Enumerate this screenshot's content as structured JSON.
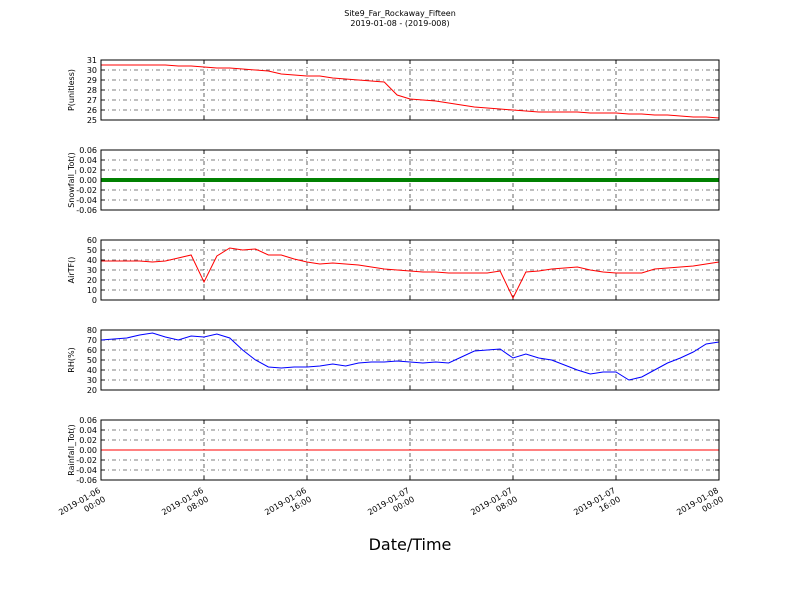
{
  "title": "Site9_Far_Rockaway_Fifteen",
  "subtitle": "2019-01-08 - (2019-008)",
  "xlabel": "Date/Time",
  "chart_data": [
    {
      "type": "line",
      "ylabel": "P(unitless)",
      "color": "#ff0000",
      "grid": true,
      "xlim": [
        "2019-01-06 00:00",
        "2019-01-08 00:00"
      ],
      "xticks": [
        "2019-01-06 00:00",
        "2019-01-06 08:00",
        "2019-01-06 16:00",
        "2019-01-07 00:00",
        "2019-01-07 08:00",
        "2019-01-07 16:00",
        "2019-01-08 00:00"
      ],
      "ylim": [
        25,
        31
      ],
      "yticks": [
        25,
        26,
        27,
        28,
        29,
        30,
        31
      ],
      "x": [
        "2019-01-06 00:00",
        "2019-01-06 01:00",
        "2019-01-06 02:00",
        "2019-01-06 03:00",
        "2019-01-06 04:00",
        "2019-01-06 05:00",
        "2019-01-06 06:00",
        "2019-01-06 07:00",
        "2019-01-06 08:00",
        "2019-01-06 09:00",
        "2019-01-06 10:00",
        "2019-01-06 11:00",
        "2019-01-06 12:00",
        "2019-01-06 13:00",
        "2019-01-06 14:00",
        "2019-01-06 15:00",
        "2019-01-06 16:00",
        "2019-01-06 17:00",
        "2019-01-06 18:00",
        "2019-01-06 19:00",
        "2019-01-06 20:00",
        "2019-01-06 21:00",
        "2019-01-06 22:00",
        "2019-01-06 23:00",
        "2019-01-07 00:00",
        "2019-01-07 01:00",
        "2019-01-07 02:00",
        "2019-01-07 03:00",
        "2019-01-07 04:00",
        "2019-01-07 05:00",
        "2019-01-07 06:00",
        "2019-01-07 07:00",
        "2019-01-07 08:00",
        "2019-01-07 09:00",
        "2019-01-07 10:00",
        "2019-01-07 11:00",
        "2019-01-07 12:00",
        "2019-01-07 13:00",
        "2019-01-07 14:00",
        "2019-01-07 15:00",
        "2019-01-07 16:00",
        "2019-01-07 17:00",
        "2019-01-07 18:00",
        "2019-01-07 19:00",
        "2019-01-07 20:00",
        "2019-01-07 21:00",
        "2019-01-07 22:00",
        "2019-01-07 23:00",
        "2019-01-08 00:00"
      ],
      "values": [
        30.5,
        30.5,
        30.5,
        30.5,
        30.5,
        30.5,
        30.4,
        30.4,
        30.3,
        30.2,
        30.2,
        30.1,
        30.0,
        29.9,
        29.6,
        29.5,
        29.4,
        29.4,
        29.2,
        29.1,
        29.0,
        28.9,
        28.8,
        27.5,
        27.1,
        27.0,
        26.9,
        26.7,
        26.5,
        26.3,
        26.2,
        26.1,
        26.0,
        25.9,
        25.8,
        25.8,
        25.8,
        25.8,
        25.7,
        25.7,
        25.7,
        25.6,
        25.6,
        25.5,
        25.5,
        25.4,
        25.3,
        25.3,
        25.2
      ]
    },
    {
      "type": "line",
      "ylabel": "Snowfall_Tot()",
      "color": "#008000",
      "grid": true,
      "xlim": [
        "2019-01-06 00:00",
        "2019-01-08 00:00"
      ],
      "xticks": [
        "2019-01-06 00:00",
        "2019-01-06 08:00",
        "2019-01-06 16:00",
        "2019-01-07 00:00",
        "2019-01-07 08:00",
        "2019-01-07 16:00",
        "2019-01-08 00:00"
      ],
      "ylim": [
        -0.06,
        0.06
      ],
      "yticks": [
        -0.06,
        -0.04,
        -0.02,
        {
          "value": 0,
          "label": "0.00"
        },
        0.02,
        0.04,
        0.06
      ],
      "x": [
        "2019-01-06 00:00",
        "2019-01-06 02:00",
        "2019-01-06 04:00",
        "2019-01-06 06:00",
        "2019-01-06 08:00",
        "2019-01-06 10:00",
        "2019-01-06 12:00",
        "2019-01-06 14:00",
        "2019-01-06 16:00",
        "2019-01-06 18:00",
        "2019-01-06 20:00",
        "2019-01-06 22:00",
        "2019-01-07 00:00",
        "2019-01-07 02:00",
        "2019-01-07 04:00",
        "2019-01-07 06:00",
        "2019-01-07 08:00",
        "2019-01-07 10:00",
        "2019-01-07 12:00",
        "2019-01-07 14:00",
        "2019-01-07 16:00",
        "2019-01-07 18:00",
        "2019-01-07 20:00",
        "2019-01-07 22:00",
        "2019-01-08 00:00"
      ],
      "values": [
        0,
        0,
        0,
        0,
        0,
        0,
        0,
        0,
        0,
        0,
        0,
        0,
        0,
        0,
        0,
        0,
        0,
        0,
        0,
        0,
        0,
        0,
        0,
        0,
        0
      ]
    },
    {
      "type": "line",
      "ylabel": "AirTF()",
      "color": "#ff0000",
      "grid": true,
      "xlim": [
        "2019-01-06 00:00",
        "2019-01-08 00:00"
      ],
      "xticks": [
        "2019-01-06 00:00",
        "2019-01-06 08:00",
        "2019-01-06 16:00",
        "2019-01-07 00:00",
        "2019-01-07 08:00",
        "2019-01-07 16:00",
        "2019-01-08 00:00"
      ],
      "ylim": [
        0,
        60
      ],
      "yticks": [
        0,
        10,
        20,
        30,
        40,
        50,
        60
      ],
      "x": [
        "2019-01-06 00:00",
        "2019-01-06 01:00",
        "2019-01-06 02:00",
        "2019-01-06 03:00",
        "2019-01-06 04:00",
        "2019-01-06 05:00",
        "2019-01-06 06:00",
        "2019-01-06 07:00",
        "2019-01-06 08:00",
        "2019-01-06 09:00",
        "2019-01-06 10:00",
        "2019-01-06 11:00",
        "2019-01-06 12:00",
        "2019-01-06 13:00",
        "2019-01-06 14:00",
        "2019-01-06 15:00",
        "2019-01-06 16:00",
        "2019-01-06 17:00",
        "2019-01-06 18:00",
        "2019-01-06 19:00",
        "2019-01-06 20:00",
        "2019-01-06 21:00",
        "2019-01-06 22:00",
        "2019-01-06 23:00",
        "2019-01-07 00:00",
        "2019-01-07 01:00",
        "2019-01-07 02:00",
        "2019-01-07 03:00",
        "2019-01-07 04:00",
        "2019-01-07 05:00",
        "2019-01-07 06:00",
        "2019-01-07 07:00",
        "2019-01-07 08:00",
        "2019-01-07 09:00",
        "2019-01-07 10:00",
        "2019-01-07 11:00",
        "2019-01-07 12:00",
        "2019-01-07 13:00",
        "2019-01-07 14:00",
        "2019-01-07 15:00",
        "2019-01-07 16:00",
        "2019-01-07 17:00",
        "2019-01-07 18:00",
        "2019-01-07 19:00",
        "2019-01-07 20:00",
        "2019-01-07 21:00",
        "2019-01-07 22:00",
        "2019-01-07 23:00",
        "2019-01-08 00:00"
      ],
      "values": [
        39,
        39,
        39,
        39,
        38,
        39,
        42,
        45,
        18,
        44,
        52,
        50,
        51,
        45,
        45,
        41,
        38,
        36,
        37,
        36,
        35,
        33,
        31,
        30,
        29,
        28,
        28,
        27,
        27,
        27,
        27,
        29,
        2,
        28,
        29,
        31,
        32,
        33,
        30,
        28,
        27,
        27,
        27,
        31,
        32,
        33,
        34,
        36,
        38
      ]
    },
    {
      "type": "line",
      "ylabel": "RH(%)",
      "color": "#0000ff",
      "grid": true,
      "xlim": [
        "2019-01-06 00:00",
        "2019-01-08 00:00"
      ],
      "xticks": [
        "2019-01-06 00:00",
        "2019-01-06 08:00",
        "2019-01-06 16:00",
        "2019-01-07 00:00",
        "2019-01-07 08:00",
        "2019-01-07 16:00",
        "2019-01-08 00:00"
      ],
      "ylim": [
        20,
        80
      ],
      "yticks": [
        20,
        30,
        40,
        50,
        60,
        70,
        80
      ],
      "x": [
        "2019-01-06 00:00",
        "2019-01-06 01:00",
        "2019-01-06 02:00",
        "2019-01-06 03:00",
        "2019-01-06 04:00",
        "2019-01-06 05:00",
        "2019-01-06 06:00",
        "2019-01-06 07:00",
        "2019-01-06 08:00",
        "2019-01-06 09:00",
        "2019-01-06 10:00",
        "2019-01-06 11:00",
        "2019-01-06 12:00",
        "2019-01-06 13:00",
        "2019-01-06 14:00",
        "2019-01-06 15:00",
        "2019-01-06 16:00",
        "2019-01-06 17:00",
        "2019-01-06 18:00",
        "2019-01-06 19:00",
        "2019-01-06 20:00",
        "2019-01-06 21:00",
        "2019-01-06 22:00",
        "2019-01-06 23:00",
        "2019-01-07 00:00",
        "2019-01-07 01:00",
        "2019-01-07 02:00",
        "2019-01-07 03:00",
        "2019-01-07 04:00",
        "2019-01-07 05:00",
        "2019-01-07 06:00",
        "2019-01-07 07:00",
        "2019-01-07 08:00",
        "2019-01-07 09:00",
        "2019-01-07 10:00",
        "2019-01-07 11:00",
        "2019-01-07 12:00",
        "2019-01-07 13:00",
        "2019-01-07 14:00",
        "2019-01-07 15:00",
        "2019-01-07 16:00",
        "2019-01-07 17:00",
        "2019-01-07 18:00",
        "2019-01-07 19:00",
        "2019-01-07 20:00",
        "2019-01-07 21:00",
        "2019-01-07 22:00",
        "2019-01-07 23:00",
        "2019-01-08 00:00"
      ],
      "values": [
        70,
        71,
        72,
        75,
        77,
        73,
        70,
        74,
        73,
        76,
        72,
        60,
        50,
        43,
        42,
        43,
        43,
        44,
        46,
        44,
        47,
        48,
        48,
        49,
        48,
        47,
        48,
        47,
        53,
        59,
        60,
        61,
        52,
        56,
        52,
        50,
        45,
        40,
        36,
        38,
        38,
        30,
        33,
        40,
        47,
        52,
        58,
        66,
        68
      ]
    },
    {
      "type": "line",
      "ylabel": "Rainfall_Tot()",
      "color": "#ff0000",
      "grid": true,
      "xlim": [
        "2019-01-06 00:00",
        "2019-01-08 00:00"
      ],
      "xticks": [
        "2019-01-06 00:00",
        "2019-01-06 08:00",
        "2019-01-06 16:00",
        "2019-01-07 00:00",
        "2019-01-07 08:00",
        "2019-01-07 16:00",
        "2019-01-08 00:00"
      ],
      "ylim": [
        -0.06,
        0.06
      ],
      "yticks": [
        -0.06,
        -0.04,
        -0.02,
        {
          "value": 0,
          "label": "0.00"
        },
        0.02,
        0.04,
        0.06
      ],
      "x": [
        "2019-01-06 00:00",
        "2019-01-06 02:00",
        "2019-01-06 04:00",
        "2019-01-06 06:00",
        "2019-01-06 08:00",
        "2019-01-06 10:00",
        "2019-01-06 12:00",
        "2019-01-06 14:00",
        "2019-01-06 16:00",
        "2019-01-06 18:00",
        "2019-01-06 20:00",
        "2019-01-06 22:00",
        "2019-01-07 00:00",
        "2019-01-07 02:00",
        "2019-01-07 04:00",
        "2019-01-07 06:00",
        "2019-01-07 08:00",
        "2019-01-07 10:00",
        "2019-01-07 12:00",
        "2019-01-07 14:00",
        "2019-01-07 16:00",
        "2019-01-07 18:00",
        "2019-01-07 20:00",
        "2019-01-07 22:00",
        "2019-01-08 00:00"
      ],
      "values": [
        0,
        0,
        0,
        0,
        0,
        0,
        0,
        0,
        0,
        0,
        0,
        0,
        0,
        0,
        0,
        0,
        0,
        0,
        0,
        0,
        0,
        0,
        0,
        0,
        0
      ]
    }
  ]
}
